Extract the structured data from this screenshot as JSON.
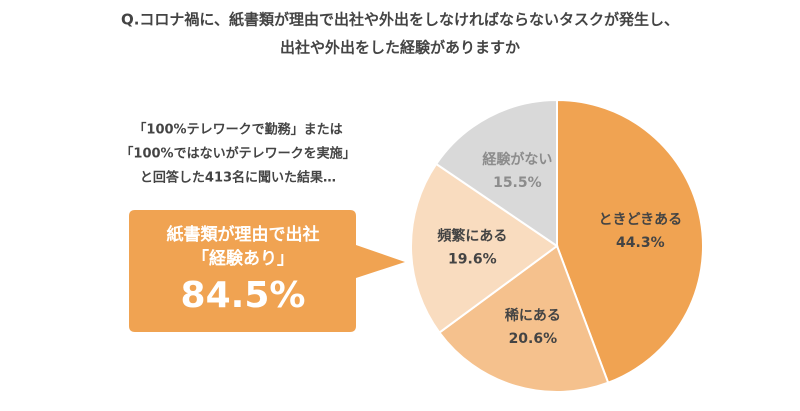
{
  "chart_data": {
    "type": "pie",
    "title_lines": [
      "Q.コロナ禍に、紙書類が理由で出社や外出をしなければならないタスクが発生し、",
      "出社や外出をした経験がありますか"
    ],
    "note_lines": [
      "「100%テレワークで勤務」または",
      "「100%ではないがテレワークを実施」",
      "と回答した413名に聞いた結果…"
    ],
    "callout": {
      "lines": [
        "紙書類が理由で出社",
        "「経験あり」"
      ],
      "value": 84.5,
      "value_label": "84.5%"
    },
    "categories": [
      "ときどきある",
      "稀にある",
      "頻繁にある",
      "経験がない"
    ],
    "values": [
      44.3,
      20.6,
      19.6,
      15.5
    ],
    "value_labels": [
      "44.3%",
      "20.6%",
      "19.6%",
      "15.5%"
    ],
    "colors": [
      "#f0a352",
      "#f5c18d",
      "#f9dcbf",
      "#d9d9d9"
    ]
  }
}
